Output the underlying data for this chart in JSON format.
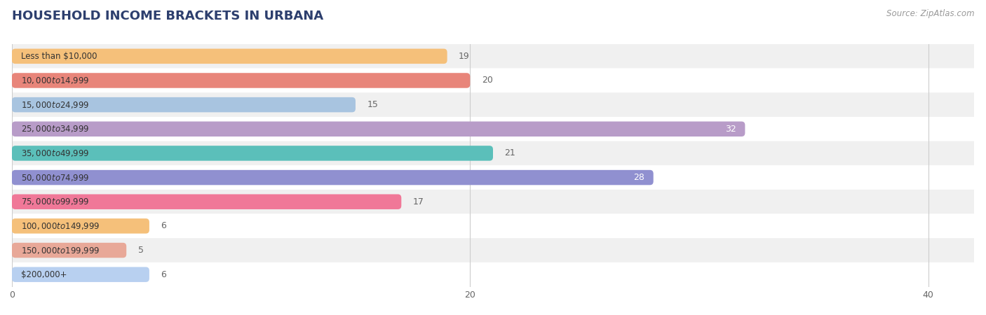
{
  "title": "HOUSEHOLD INCOME BRACKETS IN URBANA",
  "source": "Source: ZipAtlas.com",
  "categories": [
    "Less than $10,000",
    "$10,000 to $14,999",
    "$15,000 to $24,999",
    "$25,000 to $34,999",
    "$35,000 to $49,999",
    "$50,000 to $74,999",
    "$75,000 to $99,999",
    "$100,000 to $149,999",
    "$150,000 to $199,999",
    "$200,000+"
  ],
  "values": [
    19,
    20,
    15,
    32,
    21,
    28,
    17,
    6,
    5,
    6
  ],
  "bar_colors": [
    "#f5c07a",
    "#e8857a",
    "#a8c4e0",
    "#b89cc8",
    "#5bbfba",
    "#9090d0",
    "#f07898",
    "#f5c07a",
    "#e8a898",
    "#b8d0f0"
  ],
  "bg_row_colors": [
    "#f0f0f0",
    "#ffffff"
  ],
  "xlim": [
    0,
    42
  ],
  "xticks": [
    0,
    20,
    40
  ],
  "title_color": "#2d3f6e",
  "source_color": "#999999",
  "value_color_inside": "#ffffff",
  "value_color_outside": "#666666",
  "bar_height": 0.62,
  "figsize": [
    14.06,
    4.5
  ],
  "dpi": 100,
  "inside_threshold": 25
}
